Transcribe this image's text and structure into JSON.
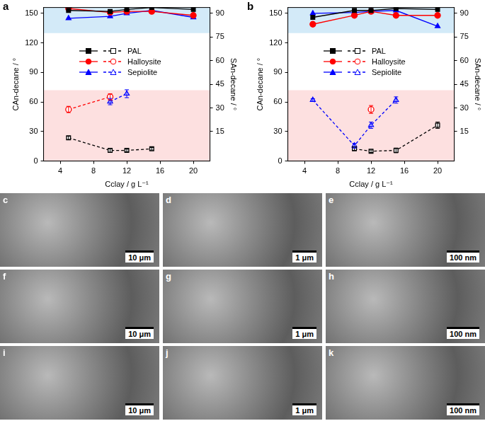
{
  "chart_data": [
    {
      "type": "line",
      "title": "a",
      "x_label": "Cclay / g L⁻¹",
      "y_label": "CAn-decane / °",
      "y2_label": "SAn-decane / °",
      "x": [
        5,
        10,
        12,
        15,
        20
      ],
      "xlim": [
        2,
        22
      ],
      "xticks": [
        4,
        8,
        12,
        16,
        20
      ],
      "ylim": [
        0,
        156
      ],
      "yticks": [
        0,
        30,
        60,
        90,
        120,
        150
      ],
      "y2lim": [
        -3.75,
        93.75
      ],
      "y2ticks": [
        15,
        30,
        45,
        60,
        75,
        90
      ],
      "grid": false,
      "bands": [
        {
          "from": 130,
          "to": 156,
          "color": "#d3eaf8"
        },
        {
          "from": 0,
          "to": 72,
          "color": "#fde0e0"
        }
      ],
      "series": [
        {
          "name": "PAL",
          "color": "#000000",
          "marker": "square",
          "line_style": "solid",
          "values": [
            153,
            152,
            154,
            156,
            154
          ]
        },
        {
          "name": "Halloysite",
          "color": "#ff0000",
          "marker": "circle",
          "line_style": "solid",
          "values": [
            155,
            151,
            152,
            152,
            148
          ]
        },
        {
          "name": "Sepiolite",
          "color": "#0000ff",
          "marker": "triangle",
          "line_style": "solid",
          "values": [
            145,
            147,
            150,
            153,
            146
          ]
        },
        {
          "name": "PAL",
          "color": "#000000",
          "marker": "open-square",
          "line_style": "dashed",
          "axis": "y2",
          "values": [
            11,
            3,
            3,
            4,
            null
          ],
          "errors": [
            1,
            1.2,
            0.8,
            0.8,
            null
          ]
        },
        {
          "name": "Halloysite",
          "color": "#ff0000",
          "marker": "open-circle",
          "line_style": "dashed",
          "axis": "y2",
          "values": [
            29,
            37,
            null,
            null,
            null
          ],
          "errors": [
            2,
            2,
            null,
            null,
            null
          ]
        },
        {
          "name": "Sepiolite",
          "color": "#0000ff",
          "marker": "open-triangle",
          "line_style": "dashed",
          "axis": "y2",
          "values": [
            null,
            34,
            39,
            null,
            null
          ],
          "errors": [
            null,
            2,
            2.5,
            null,
            null
          ]
        }
      ]
    },
    {
      "type": "line",
      "title": "b",
      "x_label": "Cclay / g L⁻¹",
      "y_label": "CAn-decane / °",
      "y2_label": "SAn-decane / °",
      "x": [
        5,
        10,
        12,
        15,
        20
      ],
      "xlim": [
        2,
        22
      ],
      "xticks": [
        4,
        8,
        12,
        16,
        20
      ],
      "ylim": [
        0,
        156
      ],
      "yticks": [
        0,
        30,
        60,
        90,
        120,
        150
      ],
      "y2lim": [
        -3.75,
        93.75
      ],
      "y2ticks": [
        15,
        30,
        45,
        60,
        75,
        90
      ],
      "grid": false,
      "bands": [
        {
          "from": 130,
          "to": 156,
          "color": "#d3eaf8"
        },
        {
          "from": 0,
          "to": 72,
          "color": "#fde0e0"
        }
      ],
      "series": [
        {
          "name": "PAL",
          "color": "#000000",
          "marker": "square",
          "line_style": "solid",
          "values": [
            146,
            153,
            153,
            155,
            154
          ]
        },
        {
          "name": "Halloysite",
          "color": "#ff0000",
          "marker": "circle",
          "line_style": "solid",
          "values": [
            139,
            148,
            152,
            148,
            148
          ]
        },
        {
          "name": "Sepiolite",
          "color": "#0000ff",
          "marker": "triangle",
          "line_style": "solid",
          "values": [
            150,
            151,
            152,
            153,
            137
          ]
        },
        {
          "name": "PAL",
          "color": "#000000",
          "marker": "open-square",
          "line_style": "dashed",
          "axis": "y2",
          "values": [
            null,
            4,
            2.5,
            3,
            19
          ],
          "errors": [
            null,
            1,
            0.8,
            1.5,
            2
          ]
        },
        {
          "name": "Halloysite",
          "color": "#ff0000",
          "marker": "open-circle",
          "line_style": "dashed",
          "axis": "y2",
          "values": [
            null,
            null,
            29,
            null,
            null
          ],
          "errors": [
            null,
            null,
            2.5,
            null,
            null
          ]
        },
        {
          "name": "Sepiolite",
          "color": "#0000ff",
          "marker": "open-triangle",
          "line_style": "dashed",
          "axis": "y2",
          "values": [
            35,
            6,
            19,
            35,
            null
          ],
          "errors": [
            0.8,
            1.5,
            2,
            2,
            null
          ]
        }
      ]
    }
  ],
  "micrographs": [
    {
      "label": "c",
      "scale_bar": "10 μm"
    },
    {
      "label": "d",
      "scale_bar": "1 μm"
    },
    {
      "label": "e",
      "scale_bar": "100 nm"
    },
    {
      "label": "f",
      "scale_bar": "10 μm"
    },
    {
      "label": "g",
      "scale_bar": "1 μm"
    },
    {
      "label": "h",
      "scale_bar": "100 nm"
    },
    {
      "label": "i",
      "scale_bar": "10 μm"
    },
    {
      "label": "j",
      "scale_bar": "1 μm"
    },
    {
      "label": "k",
      "scale_bar": "100 nm"
    }
  ]
}
